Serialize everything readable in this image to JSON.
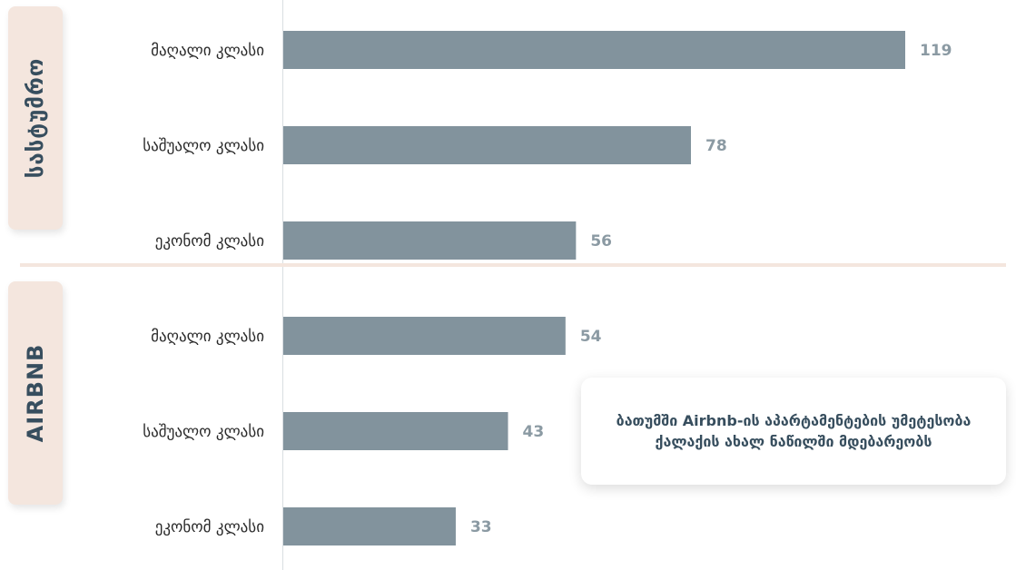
{
  "groups": [
    {
      "label": "სასტუმრო"
    },
    {
      "label": "AIRBNB"
    }
  ],
  "note": "ბათუმში Airbnb-ის აპარტამენტების უმეტესობა ქალაქის ახალ ნაწილში მდებარეობს",
  "colors": {
    "bar": "#82939d",
    "value_label": "#8b9aa3",
    "category_label": "#2a2a2a",
    "group_bg": "#f4e6de",
    "group_text": "#374e5e"
  },
  "chart_data": {
    "type": "bar",
    "orientation": "horizontal",
    "title": "",
    "xlabel": "",
    "ylabel": "",
    "xlim": [
      0,
      119
    ],
    "grid": false,
    "legend": "none",
    "groups": [
      {
        "name": "სასტუმრო",
        "categories": [
          "მაღალი კლასი",
          "საშუალო კლასი",
          "ეკონომ კლასი"
        ],
        "values": [
          119,
          78,
          56
        ]
      },
      {
        "name": "AIRBNB",
        "categories": [
          "მაღალი კლასი",
          "საშუალო კლასი",
          "ეკონომ კლასი"
        ],
        "values": [
          54,
          43,
          33
        ]
      }
    ]
  }
}
